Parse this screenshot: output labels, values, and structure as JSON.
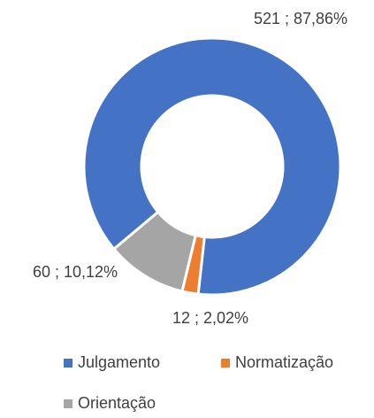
{
  "chart_data": {
    "type": "donut",
    "categories": [
      "Julgamento",
      "Normatização",
      "Orientação"
    ],
    "values": [
      521,
      12,
      60
    ],
    "value_labels": [
      "521 ; 87,86%",
      "12 ; 2,02%",
      "60 ; 10,12%"
    ],
    "colors": [
      "#4472c4",
      "#ed7d31",
      "#a5a5a5"
    ]
  }
}
